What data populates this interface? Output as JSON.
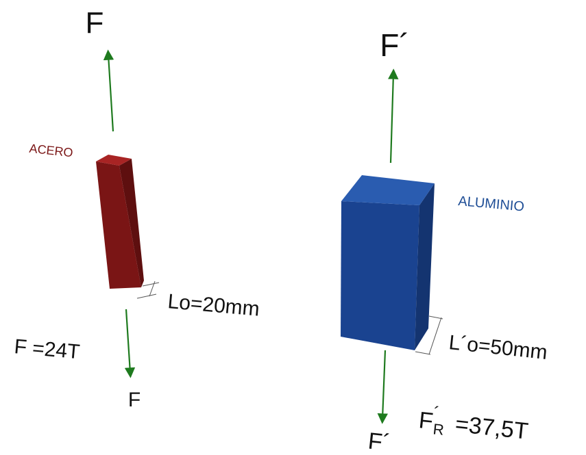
{
  "steel": {
    "material_label": "ACERO",
    "force_top": "F",
    "force_bottom": "F",
    "length_label": "Lo=20mm",
    "force_value": "F =24T",
    "color": "#8c1c1c"
  },
  "aluminum": {
    "material_label": "ALUMINIO",
    "force_top": "F´",
    "force_bottom": "F´",
    "length_label": "L´o=50mm",
    "force_value_main": "F",
    "force_value_sup": "´",
    "force_value_sub": "R",
    "force_value_rest": " =37,5T",
    "color": "#1f4e96"
  },
  "arrow_color": "#1e7a1e"
}
